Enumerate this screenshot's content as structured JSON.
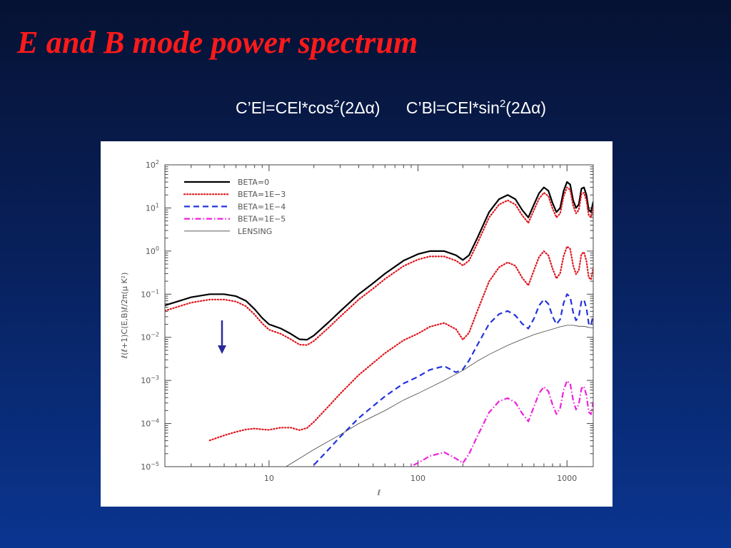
{
  "slide": {
    "title": "E and B mode power spectrum",
    "formula_e": {
      "lhs": "C’El=CEl*cos",
      "power": "2",
      "arg": "(2Δα)"
    },
    "formula_b": {
      "lhs": "C’Bl=CEl*sin",
      "power": "2",
      "arg": "(2Δα)"
    },
    "arrow_color": "#2a2a9a",
    "background_top": "#061233",
    "background_bottom": "#0a3590"
  },
  "chart_data": {
    "type": "line",
    "title": "",
    "xlabel": "ℓ",
    "ylabel": "ℓ(ℓ+1)C(E,B)ℓ/2π(μ K²)",
    "xscale": "log",
    "yscale": "log",
    "xlim": [
      2,
      1500
    ],
    "ylim": [
      1e-05,
      100
    ],
    "x_ticks": [
      {
        "value": 10,
        "label": "10"
      },
      {
        "value": 100,
        "label": "100"
      },
      {
        "value": 1000,
        "label": "1000"
      }
    ],
    "y_ticks": [
      {
        "value": 100,
        "base": "10",
        "exp": "2"
      },
      {
        "value": 10,
        "base": "10",
        "exp": "1"
      },
      {
        "value": 1,
        "base": "10",
        "exp": "0"
      },
      {
        "value": 0.1,
        "base": "10",
        "exp": "−1"
      },
      {
        "value": 0.01,
        "base": "10",
        "exp": "−2"
      },
      {
        "value": 0.001,
        "base": "10",
        "exp": "−3"
      },
      {
        "value": 0.0001,
        "base": "10",
        "exp": "−4"
      },
      {
        "value": 1e-05,
        "base": "10",
        "exp": "−5"
      }
    ],
    "grid": false,
    "legend_position": "top-left",
    "series": [
      {
        "name": "BETA=0",
        "color": "#000000",
        "dash": "solid",
        "width": 2.2,
        "scale": 1,
        "x": [
          2,
          3,
          4,
          5,
          6,
          7,
          8,
          9,
          10,
          12,
          14,
          16,
          18,
          20,
          25,
          30,
          40,
          50,
          60,
          80,
          100,
          120,
          150,
          180,
          200,
          220,
          250,
          300,
          350,
          400,
          450,
          500,
          550,
          600,
          650,
          700,
          750,
          800,
          850,
          900,
          950,
          1000,
          1050,
          1100,
          1150,
          1200,
          1250,
          1300,
          1350,
          1400,
          1450,
          1500
        ],
        "y": [
          0.055,
          0.085,
          0.1,
          0.1,
          0.09,
          0.07,
          0.045,
          0.028,
          0.02,
          0.016,
          0.012,
          0.009,
          0.0088,
          0.011,
          0.022,
          0.04,
          0.1,
          0.18,
          0.3,
          0.6,
          0.85,
          1.0,
          1.0,
          0.8,
          0.62,
          0.8,
          2.0,
          8.0,
          16,
          20,
          16,
          9,
          6.0,
          12,
          22,
          30,
          25,
          13,
          8,
          10,
          25,
          40,
          35,
          15,
          10,
          12,
          28,
          30,
          20,
          9,
          8,
          14
        ]
      },
      {
        "name": "BETA=1E−3",
        "color": "#e0161e",
        "dash": "dotted",
        "width": 2.2,
        "scale": 0.75,
        "x": [
          2,
          3,
          4,
          5,
          6,
          7,
          8,
          9,
          10,
          12,
          14,
          16,
          18,
          20,
          25,
          30,
          40,
          50,
          60,
          80,
          100,
          120,
          150,
          180,
          200,
          220,
          250,
          300,
          350,
          400,
          450,
          500,
          550,
          600,
          650,
          700,
          750,
          800,
          850,
          900,
          950,
          1000,
          1050,
          1100,
          1150,
          1200,
          1250,
          1300,
          1350,
          1400,
          1450,
          1500
        ],
        "y": [
          0.055,
          0.085,
          0.1,
          0.1,
          0.09,
          0.07,
          0.045,
          0.028,
          0.02,
          0.016,
          0.012,
          0.009,
          0.0088,
          0.011,
          0.022,
          0.04,
          0.1,
          0.18,
          0.3,
          0.6,
          0.85,
          1.0,
          1.0,
          0.8,
          0.62,
          0.8,
          2.0,
          8.0,
          16,
          20,
          16,
          9,
          6.0,
          12,
          22,
          30,
          25,
          13,
          8,
          10,
          25,
          40,
          35,
          15,
          10,
          12,
          28,
          30,
          20,
          9,
          8,
          14
        ]
      },
      {
        "name": "BETA=1E−3",
        "color": "#e0161e",
        "dash": "dotted",
        "width": 2.2,
        "scale": 1,
        "x": [
          4,
          5,
          6,
          7,
          8,
          9,
          10,
          12,
          14,
          16,
          18,
          20,
          25,
          30,
          40,
          50,
          60,
          80,
          100,
          120,
          150,
          180,
          200,
          220,
          250,
          300,
          350,
          400,
          450,
          500,
          550,
          600,
          650,
          700,
          750,
          800,
          850,
          900,
          950,
          1000,
          1050,
          1100,
          1150,
          1200,
          1250,
          1300,
          1350,
          1400,
          1450,
          1500
        ],
        "y": [
          4.06e-05,
          5.3e-05,
          6.4e-05,
          7.28e-05,
          7.64e-05,
          7.32e-05,
          7.15e-05,
          8.05e-05,
          8.05e-05,
          7.04e-05,
          7.89e-05,
          0.000109,
          0.000247,
          0.000489,
          0.00134,
          0.00254,
          0.00429,
          0.00851,
          0.0122,
          0.0176,
          0.0215,
          0.0154,
          0.00881,
          0.0127,
          0.0405,
          0.197,
          0.422,
          0.547,
          0.455,
          0.241,
          0.16,
          0.36,
          0.732,
          0.992,
          0.791,
          0.393,
          0.231,
          0.307,
          0.772,
          1.28,
          1.12,
          0.465,
          0.291,
          0.359,
          0.85,
          0.946,
          0.588,
          0.245,
          0.219,
          0.408
        ]
      },
      {
        "name": "BETA=1E−4",
        "color": "#2233dd",
        "dash": "dashed",
        "width": 2.2,
        "scale": 1,
        "x": [
          18,
          20,
          25,
          30,
          40,
          50,
          60,
          80,
          100,
          120,
          150,
          180,
          200,
          220,
          250,
          300,
          350,
          400,
          450,
          500,
          550,
          600,
          650,
          700,
          750,
          800,
          850,
          900,
          950,
          1000,
          1050,
          1100,
          1150,
          1200,
          1250,
          1300,
          1350,
          1400,
          1450,
          1500
        ],
        "y": [
          8.1e-06,
          1.09e-05,
          2.47e-05,
          4.89e-05,
          0.000134,
          0.000254,
          0.000429,
          0.000851,
          0.00122,
          0.00176,
          0.00215,
          0.00154,
          0.00181,
          0.0029,
          0.0066,
          0.0205,
          0.0347,
          0.0408,
          0.0322,
          0.0208,
          0.0159,
          0.0273,
          0.0548,
          0.0756,
          0.0595,
          0.0306,
          0.0201,
          0.0261,
          0.0628,
          0.0999,
          0.0866,
          0.0378,
          0.0247,
          0.0303,
          0.0674,
          0.0747,
          0.0474,
          0.0209,
          0.0188,
          0.0337
        ]
      },
      {
        "name": "BETA=1E−5",
        "color": "#ee22dd",
        "dash": "dashdot",
        "width": 2.2,
        "scale": 1,
        "x": [
          80,
          100,
          120,
          150,
          180,
          200,
          220,
          250,
          300,
          350,
          400,
          450,
          500,
          550,
          600,
          650,
          700,
          750,
          800,
          850,
          900,
          950,
          1000,
          1050,
          1100,
          1150,
          1200,
          1250,
          1300,
          1350,
          1400,
          1450,
          1500
        ],
        "y": [
          8.5e-06,
          1.22e-05,
          1.76e-05,
          2.15e-05,
          1.54e-05,
          1.21e-05,
          1.97e-05,
          5.05e-05,
          0.000181,
          0.000328,
          0.00039,
          0.000309,
          0.000172,
          0.000112,
          0.000247,
          0.000505,
          0.000711,
          0.000558,
          0.000276,
          0.000166,
          0.000229,
          0.000605,
          0.000979,
          0.000845,
          0.000349,
          0.000212,
          0.00028,
          0.000651,
          0.000727,
          0.000455,
          0.000186,
          0.000164,
          0.000318
        ]
      },
      {
        "name": "LENSING",
        "color": "#444444",
        "dash": "solid",
        "width": 0.8,
        "scale": 1,
        "x": [
          13,
          15,
          20,
          30,
          40,
          60,
          80,
          100,
          150,
          200,
          250,
          300,
          400,
          500,
          600,
          700,
          800,
          900,
          1000,
          1100,
          1200,
          1300,
          1400,
          1500
        ],
        "y": [
          1e-05,
          1.35e-05,
          2.5e-05,
          5.5e-05,
          0.0001,
          0.0002,
          0.00035,
          0.0005,
          0.001,
          0.0017,
          0.0028,
          0.004,
          0.0065,
          0.009,
          0.0115,
          0.0135,
          0.0155,
          0.0175,
          0.019,
          0.019,
          0.018,
          0.018,
          0.017,
          0.0165
        ]
      }
    ]
  }
}
